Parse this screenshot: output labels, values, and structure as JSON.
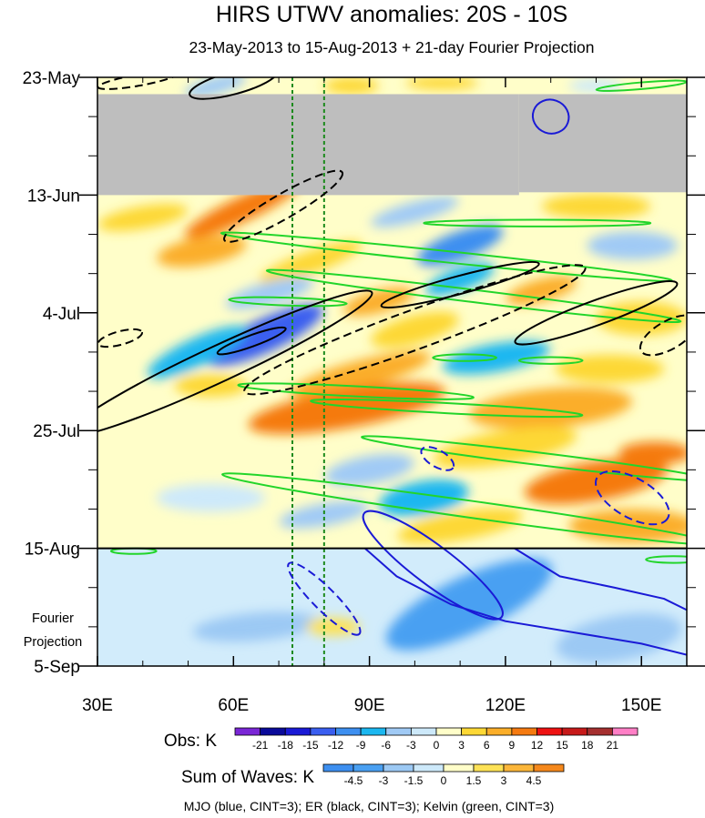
{
  "chart_data": {
    "type": "heatmap",
    "title": "HIRS UTWV anomalies: 20S - 10S",
    "subtitle": "23-May-2013 to 15-Aug-2013 + 21-day Fourier Projection",
    "x_axis": {
      "range": [
        30,
        160
      ],
      "ticks": [
        30,
        60,
        90,
        120,
        150
      ],
      "tick_labels": [
        "30E",
        "60E",
        "90E",
        "120E",
        "150E"
      ],
      "minor_ticks": [
        40,
        50,
        70,
        80,
        100,
        110,
        130,
        140
      ]
    },
    "y_axis": {
      "range_days": [
        0,
        105
      ],
      "reversed": true,
      "ticks_days": [
        0,
        21,
        42,
        63,
        84,
        105
      ],
      "tick_labels": [
        "23-May",
        "13-Jun",
        "4-Jul",
        "25-Jul",
        "15-Aug",
        "5-Sep"
      ],
      "minor_step_days": 7
    },
    "projection_label": [
      "Fourier",
      "Projection"
    ],
    "observation_end_day": 84,
    "missing_data": [
      {
        "lon_range": [
          30,
          123
        ],
        "day_range": [
          3,
          21
        ]
      },
      {
        "lon_range": [
          123,
          160
        ],
        "day_range": [
          3,
          20.5
        ]
      }
    ],
    "reference_longitudes": [
      73,
      80
    ],
    "obs_colorbar": {
      "label": "Obs: K",
      "levels": [
        -21,
        -18,
        -15,
        -12,
        -9,
        -6,
        -3,
        0,
        3,
        6,
        9,
        12,
        15,
        18,
        21
      ],
      "colors": [
        "#7a26d6",
        "#0a0a9a",
        "#1a1ad6",
        "#3a5ef0",
        "#3d8ff0",
        "#1bb7f0",
        "#a0caf5",
        "#cde9fa",
        "#fffec9",
        "#fdd835",
        "#fbae29",
        "#f57a10",
        "#ee1212",
        "#c71a1a",
        "#a52f2f",
        "#ff7fc6"
      ]
    },
    "waves_colorbar": {
      "label": "Sum of Waves: K",
      "levels": [
        -4.5,
        -3,
        -1.5,
        0,
        1.5,
        3,
        4.5
      ],
      "colors": [
        "#3d8ff0",
        "#4aa0f2",
        "#9cc9f4",
        "#cde9fa",
        "#fffec9",
        "#fde256",
        "#fbb63a",
        "#f5881c"
      ]
    },
    "footer": "MJO (blue, CINT=3); ER (black, CINT=3); Kelvin (green, CINT=3)",
    "anomaly_blobs": [
      {
        "lon": 56,
        "day": 1.5,
        "rx": 7,
        "ry": 1.5,
        "angle": -15,
        "value": -6
      },
      {
        "lon": 86,
        "day": 1.5,
        "rx": 6,
        "ry": 1.5,
        "angle": 0,
        "value": 4
      },
      {
        "lon": 106,
        "day": 1,
        "rx": 8,
        "ry": 1.2,
        "angle": 0,
        "value": 3
      },
      {
        "lon": 140,
        "day": 1.5,
        "rx": 6,
        "ry": 1.2,
        "angle": 0,
        "value": -3
      },
      {
        "lon": 62,
        "day": 23.5,
        "rx": 14,
        "ry": 2.2,
        "angle": -25,
        "value": 9
      },
      {
        "lon": 100,
        "day": 24,
        "rx": 10,
        "ry": 1.8,
        "angle": -15,
        "value": -4
      },
      {
        "lon": 140,
        "day": 23,
        "rx": 12,
        "ry": 2.2,
        "angle": 0,
        "value": 5
      },
      {
        "lon": 40,
        "day": 25,
        "rx": 10,
        "ry": 2,
        "angle": -10,
        "value": 4
      },
      {
        "lon": 110,
        "day": 30,
        "rx": 10,
        "ry": 2.5,
        "angle": -20,
        "value": -12
      },
      {
        "lon": 148,
        "day": 30,
        "rx": 10,
        "ry": 2.5,
        "angle": 0,
        "value": -6
      },
      {
        "lon": 53,
        "day": 31,
        "rx": 10,
        "ry": 2.5,
        "angle": -10,
        "value": 6
      },
      {
        "lon": 77,
        "day": 33,
        "rx": 12,
        "ry": 2,
        "angle": -20,
        "value": 4
      },
      {
        "lon": 110,
        "day": 36,
        "rx": 8,
        "ry": 2,
        "angle": -20,
        "value": -9
      },
      {
        "lon": 128,
        "day": 38,
        "rx": 8,
        "ry": 2,
        "angle": -15,
        "value": 6
      },
      {
        "lon": 68,
        "day": 38.5,
        "rx": 10,
        "ry": 2,
        "angle": -15,
        "value": -6
      },
      {
        "lon": 92,
        "day": 40,
        "rx": 8,
        "ry": 2,
        "angle": -15,
        "value": 6
      },
      {
        "lon": 150,
        "day": 43,
        "rx": 10,
        "ry": 3,
        "angle": 0,
        "value": 5
      },
      {
        "lon": 67,
        "day": 46,
        "rx": 14,
        "ry": 3,
        "angle": -25,
        "value": -15
      },
      {
        "lon": 100,
        "day": 45,
        "rx": 10,
        "ry": 2.5,
        "angle": -15,
        "value": 5
      },
      {
        "lon": 52,
        "day": 49,
        "rx": 12,
        "ry": 2.5,
        "angle": -25,
        "value": -9
      },
      {
        "lon": 118,
        "day": 50,
        "rx": 12,
        "ry": 2.5,
        "angle": -10,
        "value": -9
      },
      {
        "lon": 88,
        "day": 53,
        "rx": 16,
        "ry": 2.5,
        "angle": -15,
        "value": 7
      },
      {
        "lon": 143,
        "day": 52,
        "rx": 12,
        "ry": 2.5,
        "angle": 0,
        "value": 5
      },
      {
        "lon": 55,
        "day": 55,
        "rx": 8,
        "ry": 2,
        "angle": 0,
        "value": 5
      },
      {
        "lon": 85,
        "day": 59,
        "rx": 22,
        "ry": 3.5,
        "angle": -10,
        "value": 9
      },
      {
        "lon": 130,
        "day": 59,
        "rx": 18,
        "ry": 3.5,
        "angle": -5,
        "value": 7
      },
      {
        "lon": 120,
        "day": 66,
        "rx": 16,
        "ry": 3,
        "angle": -10,
        "value": 5
      },
      {
        "lon": 153,
        "day": 67,
        "rx": 8,
        "ry": 2,
        "angle": 0,
        "value": 11
      },
      {
        "lon": 140,
        "day": 72,
        "rx": 16,
        "ry": 3.5,
        "angle": -10,
        "value": 9
      },
      {
        "lon": 90,
        "day": 70,
        "rx": 10,
        "ry": 2.5,
        "angle": -10,
        "value": -6
      },
      {
        "lon": 102,
        "day": 75,
        "rx": 10,
        "ry": 3,
        "angle": -10,
        "value": -9
      },
      {
        "lon": 55,
        "day": 75,
        "rx": 12,
        "ry": 2.5,
        "angle": 0,
        "value": -3
      },
      {
        "lon": 80,
        "day": 78,
        "rx": 10,
        "ry": 2,
        "angle": -10,
        "value": -6
      },
      {
        "lon": 110,
        "day": 80,
        "rx": 14,
        "ry": 2.5,
        "angle": -10,
        "value": 4
      },
      {
        "lon": 148,
        "day": 80,
        "rx": 14,
        "ry": 3,
        "angle": 0,
        "value": 6
      },
      {
        "lon": 112,
        "day": 94,
        "rx": 20,
        "ry": 5,
        "angle": -25,
        "value": -3.5
      },
      {
        "lon": 65,
        "day": 98,
        "rx": 14,
        "ry": 2.5,
        "angle": -5,
        "value": -2
      },
      {
        "lon": 82,
        "day": 98,
        "rx": 6,
        "ry": 1.6,
        "angle": 0,
        "value": 2
      },
      {
        "lon": 145,
        "day": 100,
        "rx": 14,
        "ry": 4,
        "angle": -10,
        "value": -2.5
      }
    ],
    "mjo_contours": [
      {
        "style": "solid",
        "center_lon": 130,
        "center_day": 7,
        "rx": 4,
        "ry": 3,
        "angle": 20
      },
      {
        "style": "dashed",
        "center_lon": 148,
        "center_day": 75,
        "rx": 9,
        "ry": 3.5,
        "angle": 30
      },
      {
        "style": "dashed",
        "center_lon": 105,
        "center_day": 68,
        "rx": 4,
        "ry": 1.5,
        "angle": 30
      },
      {
        "style": "dashed",
        "center_lon": 80,
        "center_day": 93,
        "rx": 11,
        "ry": 2,
        "angle": 45
      },
      {
        "style": "solid",
        "center_lon": 104,
        "center_day": 87,
        "rx": 19,
        "ry": 3.5,
        "angle": 37
      },
      {
        "style": "open",
        "points": [
          [
            89,
            84
          ],
          [
            96,
            89
          ],
          [
            108,
            94
          ],
          [
            120,
            97
          ],
          [
            135,
            99
          ],
          [
            150,
            101
          ],
          [
            160,
            103
          ]
        ]
      },
      {
        "style": "open",
        "points": [
          [
            122,
            84
          ],
          [
            132,
            89
          ],
          [
            144,
            91
          ],
          [
            155,
            93
          ],
          [
            160,
            95
          ]
        ]
      }
    ],
    "er_contours": [
      {
        "style": "solid",
        "center_lon": 60,
        "center_day": 1,
        "rx": 10,
        "ry": 2,
        "angle": -15
      },
      {
        "style": "dashed",
        "center_lon": 39,
        "center_day": 0.5,
        "rx": 9,
        "ry": 1,
        "angle": -10
      },
      {
        "style": "dashed",
        "center_lon": 71,
        "center_day": 23,
        "rx": 15,
        "ry": 2.2,
        "angle": -30
      },
      {
        "style": "solid",
        "center_lon": 110,
        "center_day": 37,
        "rx": 18,
        "ry": 1.6,
        "angle": -15
      },
      {
        "style": "solid",
        "center_lon": 140,
        "center_day": 42,
        "rx": 19,
        "ry": 2.2,
        "angle": -20
      },
      {
        "style": "dashed",
        "center_lon": 100,
        "center_day": 45,
        "rx": 40,
        "ry": 3.5,
        "angle": -20
      },
      {
        "style": "solid",
        "center_lon": 57,
        "center_day": 51,
        "rx": 37,
        "ry": 3.2,
        "angle": -25
      },
      {
        "style": "solid",
        "center_lon": 64,
        "center_day": 47,
        "rx": 8,
        "ry": 1,
        "angle": -20
      },
      {
        "style": "dashed",
        "center_lon": 35,
        "center_day": 46.5,
        "rx": 5,
        "ry": 1.2,
        "angle": -15
      },
      {
        "style": "dashed",
        "center_lon": 156,
        "center_day": 46,
        "rx": 7,
        "ry": 2.5,
        "angle": -30
      }
    ],
    "kelvin_contours": [
      {
        "style": "solid",
        "center_lon": 150,
        "center_day": 1.5,
        "rx": 10,
        "ry": 0.6,
        "angle": -5
      },
      {
        "style": "solid",
        "center_lon": 127,
        "center_day": 26,
        "rx": 25,
        "ry": 0.6,
        "angle": 0
      },
      {
        "style": "solid",
        "center_lon": 107,
        "center_day": 32,
        "rx": 50,
        "ry": 1,
        "angle": 6
      },
      {
        "style": "solid",
        "center_lon": 113,
        "center_day": 39,
        "rx": 46,
        "ry": 1.1,
        "angle": 7
      },
      {
        "style": "solid",
        "center_lon": 72,
        "center_day": 40,
        "rx": 13,
        "ry": 0.7,
        "angle": 2
      },
      {
        "style": "solid",
        "center_lon": 111,
        "center_day": 50,
        "rx": 7,
        "ry": 0.6,
        "angle": 0
      },
      {
        "style": "solid",
        "center_lon": 130,
        "center_day": 50.5,
        "rx": 7,
        "ry": 0.6,
        "angle": 0
      },
      {
        "style": "solid",
        "center_lon": 87,
        "center_day": 56,
        "rx": 26,
        "ry": 0.9,
        "angle": 3
      },
      {
        "style": "solid",
        "center_lon": 107,
        "center_day": 59,
        "rx": 30,
        "ry": 0.9,
        "angle": 3
      },
      {
        "style": "solid",
        "center_lon": 127,
        "center_day": 68,
        "rx": 39,
        "ry": 1.1,
        "angle": 7
      },
      {
        "style": "solid",
        "center_lon": 112,
        "center_day": 77,
        "rx": 55,
        "ry": 1.5,
        "angle": 8
      },
      {
        "style": "solid",
        "center_lon": 157,
        "center_day": 86,
        "rx": 6,
        "ry": 0.6,
        "angle": 0
      },
      {
        "style": "solid",
        "center_lon": 38,
        "center_day": 84.5,
        "rx": 5,
        "ry": 0.5,
        "angle": 0
      }
    ]
  }
}
